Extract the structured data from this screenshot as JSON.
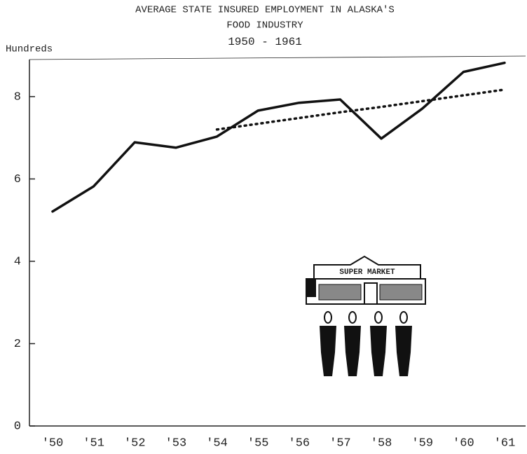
{
  "chart_data": {
    "type": "line",
    "title": [
      "AVERAGE STATE INSURED EMPLOYMENT IN ALASKA'S",
      "FOOD INDUSTRY",
      "1950 - 1961"
    ],
    "y_label": "Hundreds",
    "illustration_label": "SUPER MARKET",
    "categories": [
      "'50",
      "'51",
      "'52",
      "'53",
      "'54",
      "'55",
      "'56",
      "'57",
      "'58",
      "'59",
      "'60",
      "'61"
    ],
    "series": [
      {
        "style": "solid",
        "color": "#111111",
        "values": [
          5.21,
          5.82,
          6.89,
          6.76,
          7.03,
          7.66,
          7.85,
          7.93,
          6.98,
          7.71,
          8.6,
          8.82
        ]
      },
      {
        "style": "dotted",
        "color": "#111111",
        "values": [
          null,
          null,
          null,
          null,
          7.2,
          7.34,
          7.48,
          7.62,
          7.75,
          7.89,
          8.03,
          8.17
        ]
      }
    ],
    "ylim": [
      0,
      8.9
    ],
    "yticks": [
      0,
      2,
      4,
      6,
      8
    ]
  }
}
